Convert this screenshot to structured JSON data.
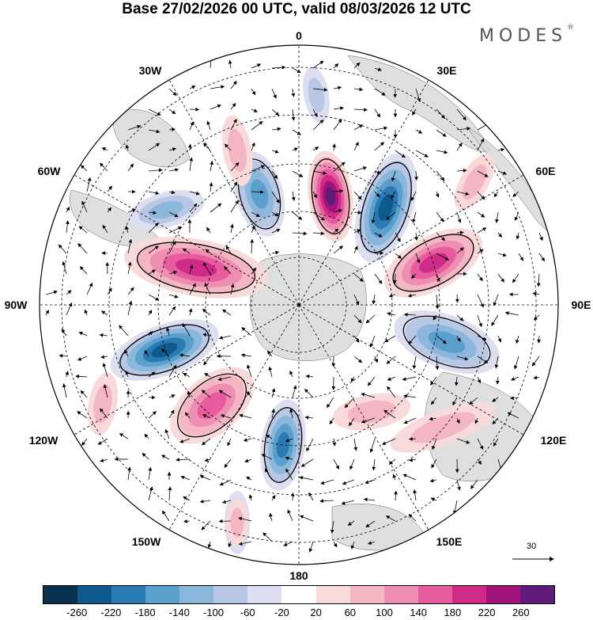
{
  "header": {
    "title": "Base 27/02/2026 00 UTC, valid 08/03/2026 12 UTC",
    "brand": "MODES",
    "brand_mark": "®"
  },
  "map": {
    "projection": "south-polar-stereographic",
    "longitude_labels": {
      "top": "0",
      "bottom": "180",
      "left": "90W",
      "right": "90E",
      "upper_left_1": "30W",
      "upper_left_2": "60W",
      "upper_right_1": "30E",
      "upper_right_2": "60E",
      "lower_left_1": "120W",
      "lower_left_2": "150W",
      "lower_right_1": "120E",
      "lower_right_2": "150E"
    },
    "wind_reference": {
      "value": "30",
      "unit_arrow": "reference-vector"
    },
    "colors": {
      "neg": [
        "#08304f",
        "#0f5a8c",
        "#2a7ab4",
        "#5b9fcc",
        "#8cb7dc",
        "#b8c8e4",
        "#dddff0"
      ],
      "pos": [
        "#f8dada",
        "#f4b6c2",
        "#ee8eb2",
        "#e65c9e",
        "#cf2a88",
        "#a0147a",
        "#601a7a"
      ],
      "land": "#d9d9d9",
      "white": "#ffffff"
    }
  },
  "colorbar": {
    "ticks": [
      "-260",
      "-220",
      "-180",
      "-140",
      "-100",
      "-60",
      "-20",
      "20",
      "60",
      "100",
      "140",
      "180",
      "220",
      "260"
    ],
    "colors": [
      "#08304f",
      "#0f5a8c",
      "#2a7ab4",
      "#5b9fcc",
      "#8cb7dc",
      "#b8c8e4",
      "#dddff0",
      "#ffffff",
      "#f8dada",
      "#f4b6c2",
      "#ee8eb2",
      "#e65c9e",
      "#cf2a88",
      "#a0147a",
      "#601a7a"
    ]
  }
}
